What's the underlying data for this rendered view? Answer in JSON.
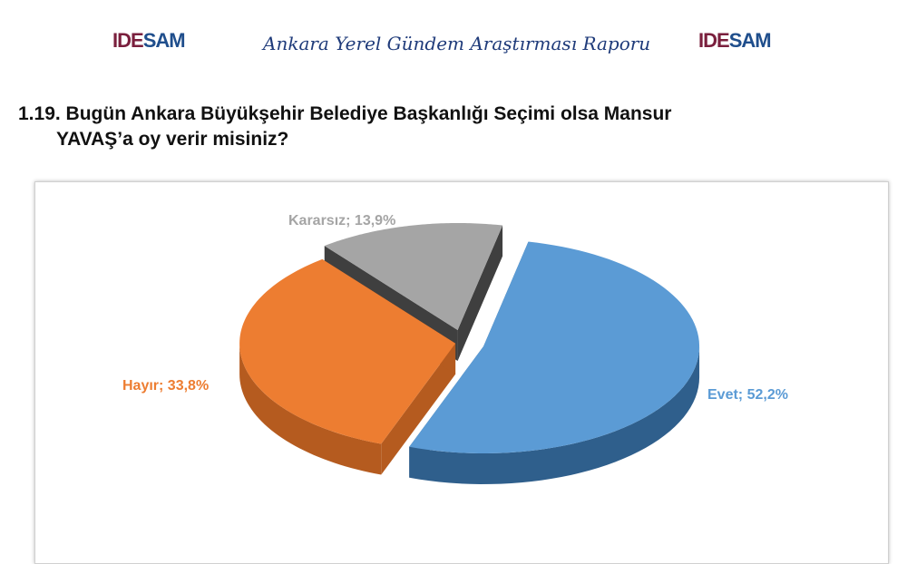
{
  "header": {
    "logo_left": {
      "part1": "IDE",
      "part2": "SAM"
    },
    "title": "Ankara Yerel Gündem Araştırması Raporu",
    "logo_right": {
      "part1": "IDE",
      "part2": "SAM"
    }
  },
  "question": {
    "line1": "1.19. Bugün Ankara Büyükşehir Belediye Başkanlığı Seçimi olsa Mansur",
    "line2": "YAVAŞ’a oy verir misiniz?"
  },
  "chart_data": {
    "type": "pie",
    "style": "3d-exploded",
    "slices": [
      {
        "label": "Evet",
        "value": 52.2,
        "text": "Evet; 52,2%",
        "color": "#5b9bd5",
        "side": "#2f5f8c"
      },
      {
        "label": "Hayır",
        "value": 33.8,
        "text": "Hayır; 33,8%",
        "color": "#ed7d31",
        "side": "#b55b1f"
      },
      {
        "label": "Kararsız",
        "value": 13.9,
        "text": "Kararsız; 13,9%",
        "color": "#a5a5a5",
        "side": "#3f3f3f"
      }
    ],
    "legend": "none"
  }
}
